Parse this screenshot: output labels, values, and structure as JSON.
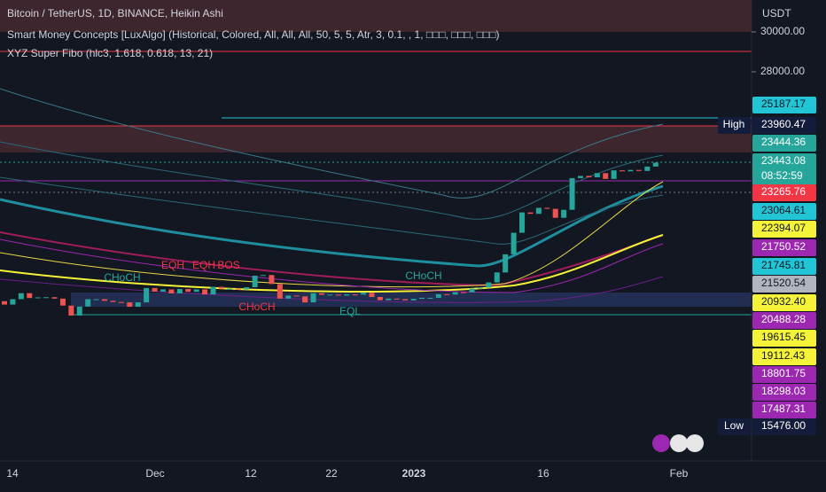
{
  "chart_data": {
    "type": "candlestick",
    "title": "Bitcoin / TetherUS, 1D, BINANCE, Heikin Ashi",
    "indicators": [
      "Smart Money Concepts [LuxAlgo] (Historical, Colored, All, All, All, 50, 5, 5, Atr, 3, 0.1, , 1, □□□, □□□, □□□)",
      "XYZ Super Fibo (hlc3, 1.618, 0.618, 13, 21)"
    ],
    "currency": "USDT",
    "ylim": [
      8489,
      31600
    ],
    "yticks": [
      {
        "value": 30000,
        "label": "30000.00"
      },
      {
        "value": 28000,
        "label": "28000.00"
      }
    ],
    "xticks": [
      "14",
      "Dec",
      "12",
      "22",
      "2023",
      "16",
      "Feb"
    ],
    "open": [
      16500,
      16330,
      16600,
      16900,
      16660,
      16690,
      16700,
      16630,
      16280,
      15780,
      16230,
      16600,
      16600,
      16520,
      16460,
      16440,
      16220,
      16440,
      17160,
      16980,
      17090,
      16890,
      17110,
      16970,
      17090,
      16840,
      17220,
      17130,
      17130,
      17090,
      17200,
      17780,
      17810,
      17360,
      16630,
      16780,
      16740,
      16440,
      16900,
      16820,
      16830,
      16780,
      16840,
      16830,
      16920,
      16710,
      16550,
      16630,
      16600,
      16540,
      16620,
      16670,
      16670,
      16850,
      16830,
      16950,
      16940,
      17130,
      17180,
      17440,
      17940,
      18850,
      19930,
      20950,
      20880,
      21180,
      21130,
      20680,
      21080,
      22670,
      22780,
      22710,
      22920,
      22630,
      23060,
      23010,
      23080,
      23030,
      23250
    ],
    "close": [
      16330,
      16600,
      16900,
      16660,
      16690,
      16700,
      16630,
      16280,
      15780,
      16230,
      16600,
      16600,
      16520,
      16460,
      16440,
      16220,
      16440,
      17160,
      16980,
      17090,
      16890,
      17110,
      16970,
      17090,
      16840,
      17220,
      17130,
      17130,
      17090,
      17200,
      17780,
      17810,
      17360,
      16630,
      16780,
      16740,
      16440,
      16900,
      16820,
      16830,
      16780,
      16840,
      16830,
      16920,
      16710,
      16550,
      16630,
      16600,
      16540,
      16620,
      16670,
      16670,
      16850,
      16830,
      16950,
      16940,
      17130,
      17180,
      17440,
      17940,
      18850,
      19930,
      20950,
      20880,
      21180,
      21130,
      20680,
      21080,
      22670,
      22780,
      22710,
      22920,
      22630,
      23060,
      23010,
      23080,
      23030,
      23250,
      23443
    ],
    "price_tags": [
      {
        "value": 25187.17,
        "bg": "#22c5d6",
        "fg": "#131722"
      },
      {
        "value": 23960.47,
        "bg": "#131c3a",
        "fg": "#ffffff",
        "name": "High"
      },
      {
        "value": 23444.36,
        "bg": "#26a69a",
        "fg": "#ffffff"
      },
      {
        "value": 23443.08,
        "bg": "#26a69a",
        "fg": "#ffffff",
        "timer": "08:52:59"
      },
      {
        "value": 23265.76,
        "bg": "#f23645",
        "fg": "#ffffff"
      },
      {
        "value": 23064.61,
        "bg": "#22c5d6",
        "fg": "#131722"
      },
      {
        "value": 22394.07,
        "bg": "#f5f23a",
        "fg": "#131722"
      },
      {
        "value": 21750.52,
        "bg": "#9c27b0",
        "fg": "#ffffff"
      },
      {
        "value": 21745.81,
        "bg": "#22c5d6",
        "fg": "#131722"
      },
      {
        "value": 21520.54,
        "bg": "#b2b5be",
        "fg": "#131722"
      },
      {
        "value": {
          "value": 20932.4,
          "label": "20932.40"
        },
        "bg": "#f5f23a",
        "fg": "#131722"
      },
      {
        "value": 20488.28,
        "bg": "#9c27b0",
        "fg": "#ffffff"
      },
      {
        "value": 19615.45,
        "bg": "#f5f23a",
        "fg": "#131722"
      },
      {
        "value": 19112.43,
        "bg": "#f5f23a",
        "fg": "#131722"
      },
      {
        "value": 18801.75,
        "bg": "#9c27b0",
        "fg": "#ffffff"
      },
      {
        "value": 18298.03,
        "bg": "#9c27b0",
        "fg": "#ffffff"
      },
      {
        "value": 17487.31,
        "bg": "#9c27b0",
        "fg": "#ffffff"
      },
      {
        "value": {
          "value": 15476,
          "label": "15476.00"
        },
        "bg": "#131c3a",
        "fg": "#ffffff",
        "name": "Low"
      }
    ],
    "annotations": [
      "EQH",
      "EQH",
      "BOS",
      "CHoCH",
      "CHoCH",
      "CHoCH",
      "EQL"
    ]
  }
}
